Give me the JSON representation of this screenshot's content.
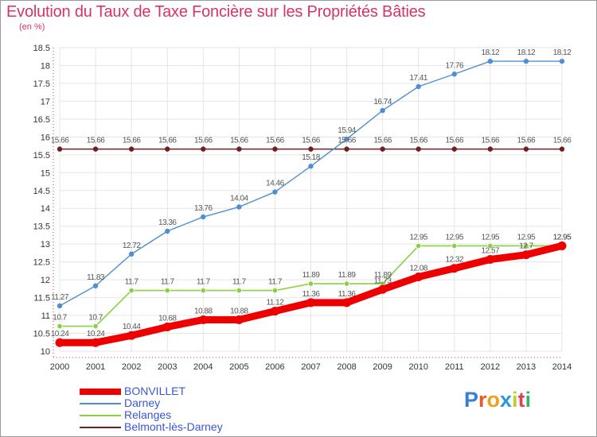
{
  "title": "Evolution du Taux de Taxe Foncière sur les Propriétés Bâties",
  "unit_label": "(en %)",
  "logo_text": "Proxiti",
  "colors": {
    "title": "#d6336c",
    "axis_red": "#e0303a",
    "legend_text": "#3a56d4",
    "grid": "#e5e5e5"
  },
  "chart_data": {
    "type": "line",
    "title": "Evolution du Taux de Taxe Foncière sur les Propriétés Bâties",
    "ylabel": "(en %)",
    "x": [
      "2000",
      "2001",
      "2002",
      "2003",
      "2004",
      "2005",
      "2006",
      "2007",
      "2008",
      "2009",
      "2010",
      "2011",
      "2012",
      "2013",
      "2014"
    ],
    "ylim": [
      10,
      18.5
    ],
    "yticks": [
      "10",
      "10.5",
      "11",
      "11.5",
      "12",
      "12.5",
      "13",
      "13.5",
      "14",
      "14.5",
      "15",
      "15.5",
      "16",
      "16.5",
      "17",
      "17.5",
      "18",
      "18.5"
    ],
    "grid": true,
    "legend_position": "bottom-left",
    "series": [
      {
        "name": "BONVILLET",
        "color": "#ee0000",
        "values": [
          10.24,
          10.24,
          10.44,
          10.68,
          10.88,
          10.88,
          11.12,
          11.36,
          11.36,
          11.73,
          12.08,
          12.32,
          12.57,
          12.7,
          12.95
        ],
        "labels": [
          "10.24",
          "10.24",
          "10.44",
          "10.68",
          "10.88",
          "10.88",
          "11.12",
          "11.36",
          "11.36",
          "11.73",
          "12.08",
          "12.32",
          "12.57",
          "12.7",
          "12.95"
        ]
      },
      {
        "name": "Darney",
        "color": "#4f8fd0",
        "values": [
          11.27,
          11.83,
          12.72,
          13.36,
          13.76,
          14.04,
          14.46,
          15.18,
          15.94,
          16.74,
          17.41,
          17.76,
          18.12,
          18.12,
          18.12
        ],
        "labels": [
          "11.27",
          "11.83",
          "12.72",
          "13.36",
          "13.76",
          "14.04",
          "14.46",
          "15.18",
          "15.94",
          "16.74",
          "17.41",
          "17.76",
          "18.12",
          "18.12",
          "18.12"
        ]
      },
      {
        "name": "Relanges",
        "color": "#88d040",
        "values": [
          10.7,
          10.7,
          11.7,
          11.7,
          11.7,
          11.7,
          11.7,
          11.89,
          11.89,
          11.89,
          12.95,
          12.95,
          12.95,
          12.95,
          12.95
        ],
        "labels": [
          "10.7",
          "10.7",
          "11.7",
          "11.7",
          "11.7",
          "11.7",
          "11.7",
          "11.89",
          "11.89",
          "11.89",
          "12.95",
          "12.95",
          "12.95",
          "12.95",
          "12.95"
        ]
      },
      {
        "name": "Belmont-lès-Darney",
        "color": "#702020",
        "values": [
          15.66,
          15.66,
          15.66,
          15.66,
          15.66,
          15.66,
          15.66,
          15.66,
          15.66,
          15.66,
          15.66,
          15.66,
          15.66,
          15.66,
          15.66
        ],
        "labels": [
          "15.66",
          "15.66",
          "15.66",
          "15.66",
          "15.66",
          "15.66",
          "15.66",
          "15.66",
          "15.66",
          "15.66",
          "15.66",
          "15.66",
          "15.66",
          "15.66",
          "15.66"
        ]
      }
    ]
  }
}
